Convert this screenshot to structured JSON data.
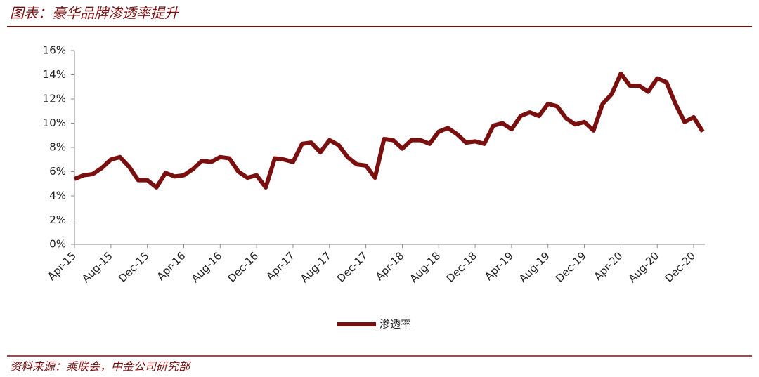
{
  "title": "图表：豪华品牌渗透率提升",
  "source": "资料来源：乘联会，中金公司研究部",
  "chart_data": {
    "type": "line",
    "categories": [
      "Apr-15",
      null,
      null,
      null,
      "Aug-15",
      null,
      null,
      null,
      "Dec-15",
      null,
      null,
      null,
      "Apr-16",
      null,
      null,
      null,
      "Aug-16",
      null,
      null,
      null,
      "Dec-16",
      null,
      null,
      null,
      "Apr-17",
      null,
      null,
      null,
      "Aug-17",
      null,
      null,
      null,
      "Dec-17",
      null,
      null,
      null,
      "Apr-18",
      null,
      null,
      null,
      "Aug-18",
      null,
      null,
      null,
      "Dec-18",
      null,
      null,
      null,
      "Apr-19",
      null,
      null,
      null,
      "Aug-19",
      null,
      null,
      null,
      "Dec-19",
      null,
      null,
      null,
      "Apr-20",
      null,
      null,
      null,
      "Aug-20",
      null,
      null,
      null,
      "Dec-20",
      null
    ],
    "series": [
      {
        "name": "渗透率",
        "color": "#7a0f0f",
        "values": [
          5.4,
          5.7,
          5.8,
          6.3,
          7.0,
          7.2,
          6.4,
          5.3,
          5.3,
          4.7,
          5.9,
          5.6,
          5.7,
          6.2,
          6.9,
          6.8,
          7.2,
          7.1,
          6.0,
          5.5,
          5.7,
          4.7,
          7.1,
          7.0,
          6.8,
          8.3,
          8.4,
          7.6,
          8.6,
          8.2,
          7.2,
          6.6,
          6.5,
          5.5,
          8.7,
          8.6,
          7.9,
          8.6,
          8.6,
          8.3,
          9.3,
          9.6,
          9.1,
          8.4,
          8.5,
          8.3,
          9.8,
          10.0,
          9.5,
          10.6,
          10.9,
          10.6,
          11.6,
          11.4,
          10.4,
          9.9,
          10.1,
          9.4,
          11.6,
          12.4,
          14.1,
          13.1,
          13.1,
          12.6,
          13.7,
          13.4,
          11.6,
          10.1,
          10.5,
          9.3
        ]
      }
    ],
    "ylim": [
      0,
      16
    ],
    "yticks": [
      {
        "value": 0,
        "label": "0%"
      },
      {
        "value": 2,
        "label": "2%"
      },
      {
        "value": 4,
        "label": "4%"
      },
      {
        "value": 6,
        "label": "6%"
      },
      {
        "value": 8,
        "label": "8%"
      },
      {
        "value": 10,
        "label": "10%"
      },
      {
        "value": 12,
        "label": "12%"
      },
      {
        "value": 14,
        "label": "14%"
      },
      {
        "value": 16,
        "label": "16%"
      }
    ],
    "grid": false,
    "legend": "bottom"
  }
}
